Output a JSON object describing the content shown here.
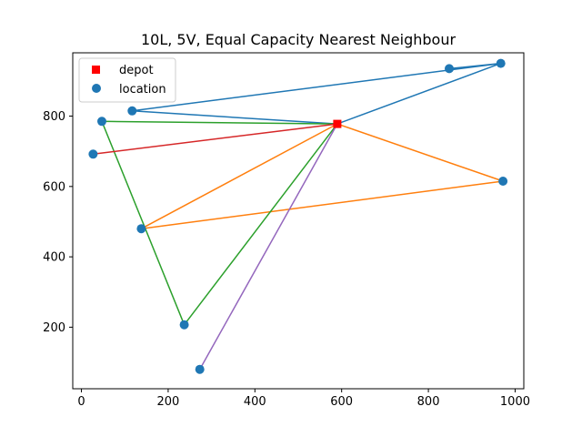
{
  "chart_data": {
    "type": "scatter",
    "title": "10L, 5V, Equal Capacity Nearest Neighbour",
    "xlabel": "",
    "ylabel": "",
    "xlim": [
      -20,
      1020
    ],
    "ylim": [
      25,
      980
    ],
    "xticks": [
      0,
      200,
      400,
      600,
      800,
      1000
    ],
    "yticks": [
      200,
      400,
      600,
      800
    ],
    "legend": {
      "placement": "top-left",
      "entries": [
        {
          "label": "depot",
          "marker": "square",
          "color": "#ff0000"
        },
        {
          "label": "location",
          "marker": "circle",
          "color": "#1f77b4"
        }
      ]
    },
    "depot": {
      "x": 590,
      "y": 778
    },
    "locations": [
      {
        "x": 967,
        "y": 950
      },
      {
        "x": 848,
        "y": 935
      },
      {
        "x": 117,
        "y": 815
      },
      {
        "x": 47,
        "y": 785
      },
      {
        "x": 27,
        "y": 692
      },
      {
        "x": 972,
        "y": 615
      },
      {
        "x": 138,
        "y": 480
      },
      {
        "x": 237,
        "y": 207
      },
      {
        "x": 273,
        "y": 80
      }
    ],
    "routes": [
      {
        "color": "#1f77b4",
        "path": [
          [
            590,
            778
          ],
          [
            967,
            950
          ],
          [
            848,
            935
          ],
          [
            967,
            950
          ],
          [
            117,
            815
          ],
          [
            590,
            778
          ]
        ]
      },
      {
        "color": "#ff7f0e",
        "path": [
          [
            590,
            778
          ],
          [
            972,
            615
          ],
          [
            138,
            480
          ],
          [
            590,
            778
          ]
        ]
      },
      {
        "color": "#2ca02c",
        "path": [
          [
            590,
            778
          ],
          [
            47,
            785
          ],
          [
            237,
            207
          ],
          [
            590,
            778
          ]
        ]
      },
      {
        "color": "#d62728",
        "path": [
          [
            590,
            778
          ],
          [
            27,
            692
          ],
          [
            590,
            778
          ]
        ]
      },
      {
        "color": "#9467bd",
        "path": [
          [
            590,
            778
          ],
          [
            273,
            80
          ],
          [
            590,
            778
          ]
        ]
      }
    ]
  }
}
